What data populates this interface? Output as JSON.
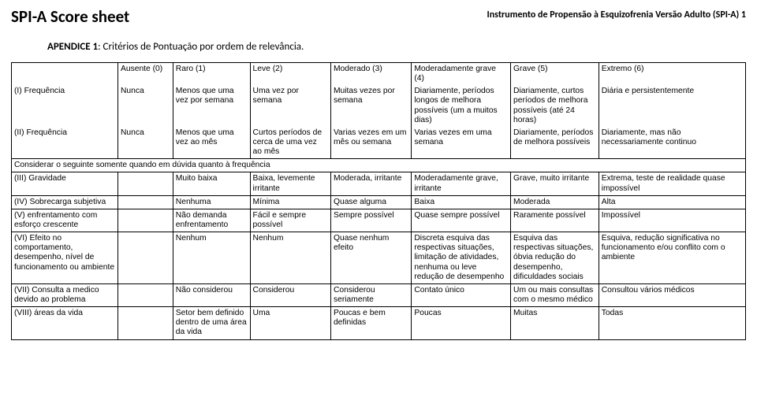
{
  "header": {
    "title": "SPI-A Score sheet",
    "subtitle": "Instrumento de Propensão à Esquizofrenia Versão Adulto (SPI-A) 1"
  },
  "appendix": {
    "bold": "APENDICE 1",
    "rest": ": Critérios de Pontuação por ordem de relevância."
  },
  "head": {
    "c0": "",
    "c1": "Ausente (0)",
    "c2": "Raro (1)",
    "c3": "Leve (2)",
    "c4": "Moderado (3)",
    "c5": "Moderadamente grave (4)",
    "c6": "Grave (5)",
    "c7": "Extremo (6)"
  },
  "r1": {
    "c0": "(I) Frequência",
    "c1": "Nunca",
    "c2": "Menos que uma vez por semana",
    "c3": "Uma vez por semana",
    "c4": "Muitas vezes por semana",
    "c5": "Diariamente, períodos longos de melhora possíveis (um a muitos dias)",
    "c6": "Diariamente, curtos períodos de melhora possíveis (até 24 horas)",
    "c7": "Diária e persistentemente"
  },
  "r2": {
    "c0": "(II) Frequência",
    "c1": "Nunca",
    "c2": "Menos que uma vez ao mês",
    "c3": "Curtos períodos de cerca de uma vez ao mês",
    "c4": "Varias vezes em um mês ou semana",
    "c5": "Varias vezes em uma semana",
    "c6": "Diariamente, períodos de melhora possíveis",
    "c7": "Diariamente, mas não necessariamente continuo"
  },
  "note": "Considerar o seguinte somente quando em dúvida quanto à frequência",
  "r3": {
    "c0": "(III) Gravidade",
    "c1": "",
    "c2": "Muito baixa",
    "c3": "Baixa, levemente irritante",
    "c4": "Moderada, irritante",
    "c5": "Moderadamente grave, irritante",
    "c6": "Grave, muito irritante",
    "c7": "Extrema, teste de realidade quase impossível"
  },
  "r4": {
    "c0": "(IV) Sobrecarga subjetiva",
    "c1": "",
    "c2": "Nenhuma",
    "c3": "Mínima",
    "c4": "Quase alguma",
    "c5": "Baixa",
    "c6": "Moderada",
    "c7": "Alta"
  },
  "r5": {
    "c0": "(V) enfrentamento com esforço crescente",
    "c1": "",
    "c2": "Não demanda enfrentamento",
    "c3": "Fácil e sempre possível",
    "c4": "Sempre possível",
    "c5": "Quase sempre possível",
    "c6": "Raramente possível",
    "c7": "Impossível"
  },
  "r6": {
    "c0": "(VI) Efeito no comportamento, desempenho, nível de funcionamento ou ambiente",
    "c1": "",
    "c2": "Nenhum",
    "c3": "Nenhum",
    "c4": "Quase nenhum efeito",
    "c5": "Discreta esquiva das respectivas situações, limitação de atividades, nenhuma ou leve redução de desempenho",
    "c6": "Esquiva das respectivas situações, óbvia redução do desempenho, dificuldades sociais",
    "c7": "Esquiva, redução significativa no funcionamento e/ou conflito com o ambiente"
  },
  "r7": {
    "c0": "(VII) Consulta a medico devido ao problema",
    "c1": "",
    "c2": "Não considerou",
    "c3": "Considerou",
    "c4": "Considerou seriamente",
    "c5": "Contato único",
    "c6": "Um ou mais consultas com o mesmo médico",
    "c7": "Consultou vários médicos"
  },
  "r8": {
    "c0": "(VIII) áreas da vida",
    "c1": "",
    "c2": "Setor bem definido dentro de uma área da vida",
    "c3": "Uma",
    "c4": "Poucas e bem definidas",
    "c5": "Poucas",
    "c6": "Muitas",
    "c7": "Todas"
  }
}
